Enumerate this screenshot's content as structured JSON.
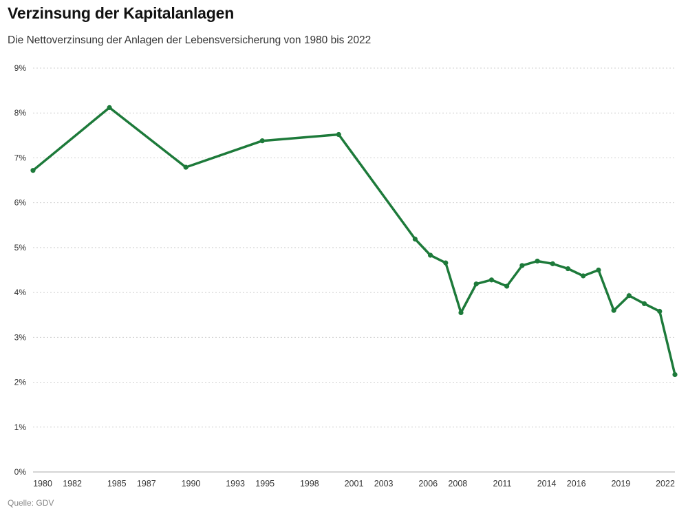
{
  "header": {
    "title": "Verzinsung der Kapitalanlagen",
    "subtitle": "Die Nettoverzinsung der Anlagen der Lebensversicherung von 1980 bis 2022"
  },
  "footer": {
    "source": "Quelle: GDV"
  },
  "colors": {
    "line": "#1d7a3a",
    "grid": "#cfcfcf"
  },
  "chart_data": {
    "type": "line",
    "title": "Verzinsung der Kapitalanlagen",
    "subtitle": "Die Nettoverzinsung der Anlagen der Lebensversicherung von 1980 bis 2022",
    "xlabel": "",
    "ylabel": "",
    "ylim": [
      0,
      9
    ],
    "xlim": [
      1980,
      2022
    ],
    "grid": true,
    "legend": "none",
    "y_ticks": [
      0,
      1,
      2,
      3,
      4,
      5,
      6,
      7,
      8,
      9
    ],
    "y_tick_labels": [
      "0%",
      "1%",
      "2%",
      "3%",
      "4%",
      "5%",
      "6%",
      "7%",
      "8%",
      "9%"
    ],
    "x_ticks": [
      1980,
      1982,
      1985,
      1987,
      1990,
      1993,
      1995,
      1998,
      2001,
      2003,
      2006,
      2008,
      2011,
      2014,
      2016,
      2019,
      2022
    ],
    "x_tick_labels": [
      "1980",
      "1982",
      "1985",
      "1987",
      "1990",
      "1993",
      "1995",
      "1998",
      "2001",
      "2003",
      "2006",
      "2008",
      "2011",
      "2014",
      "2016",
      "2019",
      "2022"
    ],
    "series": [
      {
        "x": [
          1980,
          1985,
          1990,
          1995,
          2000,
          2005,
          2006,
          2007,
          2008,
          2009,
          2010,
          2011,
          2012,
          2013,
          2014,
          2015,
          2016,
          2017,
          2018,
          2019,
          2020,
          2021,
          2022
        ],
        "values": [
          6.72,
          8.12,
          6.79,
          7.38,
          7.52,
          5.19,
          4.83,
          4.66,
          3.55,
          4.19,
          4.28,
          4.14,
          4.6,
          4.7,
          4.64,
          4.53,
          4.37,
          4.5,
          3.6,
          3.93,
          3.75,
          3.58,
          2.17
        ]
      }
    ],
    "source": "Quelle: GDV"
  }
}
